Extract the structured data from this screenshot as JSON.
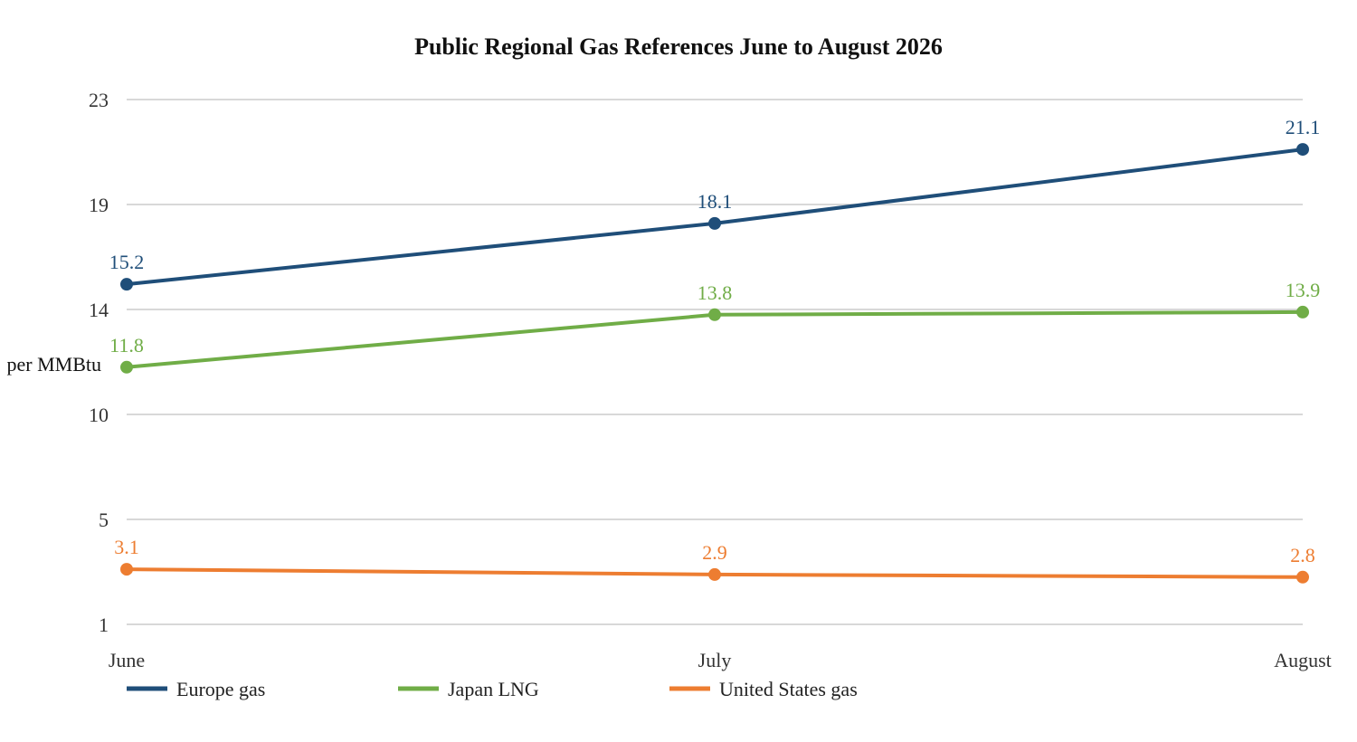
{
  "chart_data": {
    "type": "line",
    "title": "Public Regional Gas References June to August 2026",
    "xlabel": "",
    "ylabel": "per MMBtu",
    "categories": [
      "June",
      "July",
      "August"
    ],
    "y_ticks": [
      1,
      5,
      10,
      14,
      19,
      23
    ],
    "grid": true,
    "legend_position": "bottom-left",
    "series": [
      {
        "name": "Europe gas",
        "color": "#1f4e79",
        "values": [
          15.2,
          18.1,
          21.1
        ],
        "labels": [
          "15.2",
          "18.1",
          "21.1"
        ]
      },
      {
        "name": "Japan LNG",
        "color": "#70ad47",
        "values": [
          11.8,
          13.8,
          13.9
        ],
        "labels": [
          "11.8",
          "13.8",
          "13.9"
        ]
      },
      {
        "name": "United States gas",
        "color": "#ed7d31",
        "values": [
          3.1,
          2.9,
          2.8
        ],
        "labels": [
          "3.1",
          "2.9",
          "2.8"
        ]
      }
    ]
  }
}
